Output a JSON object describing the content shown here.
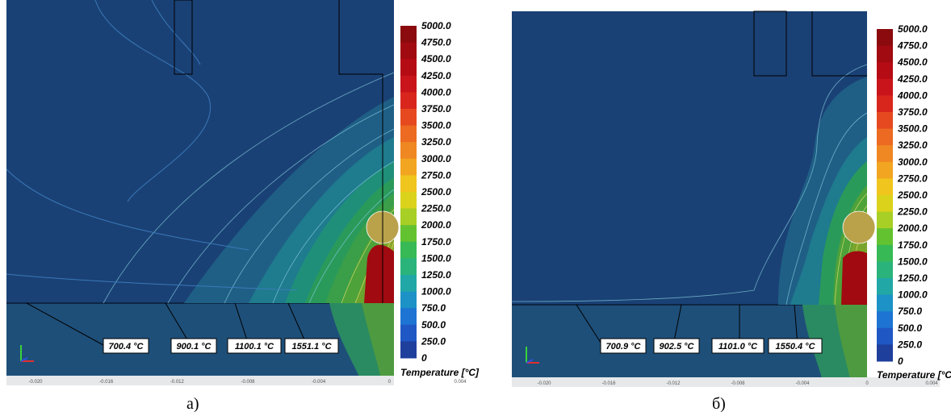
{
  "colors": {
    "background_field": "#1a4175",
    "substrate": "#1e4f79",
    "scale": [
      "#1f3f9c",
      "#1f58c4",
      "#1d74d2",
      "#1d92c6",
      "#21a8a6",
      "#2bb37c",
      "#37b955",
      "#63c230",
      "#a8cf25",
      "#dbd21c",
      "#f0c51d",
      "#f2a520",
      "#ef8722",
      "#ec6a21",
      "#e64920",
      "#d9261d",
      "#c8141a",
      "#b50b14",
      "#a00a10",
      "#8a0a0d"
    ]
  },
  "panels": [
    {
      "caption": "а)",
      "legend": {
        "title": "Temperature [°C]",
        "labels": [
          "5000.0",
          "4750.0",
          "4500.0",
          "4250.0",
          "4000.0",
          "3750.0",
          "3500.0",
          "3250.0",
          "3000.0",
          "2750.0",
          "2500.0",
          "2250.0",
          "2000.0",
          "1750.0",
          "1500.0",
          "1250.0",
          "1000.0",
          "750.0",
          "500.0",
          "250.0",
          "0"
        ]
      },
      "probes": [
        "700.4 °C",
        "900.1 °C",
        "1100.1 °C",
        "1551.1 °C"
      ],
      "x_ticks": [
        "-0.020",
        "-0.016",
        "-0.012",
        "-0.008",
        "-0.004",
        "0",
        "0.004"
      ]
    },
    {
      "caption": "б)",
      "legend": {
        "title": "Temperature [°C",
        "labels": [
          "5000.0",
          "4750.0",
          "4500.0",
          "4250.0",
          "4000.0",
          "3750.0",
          "3500.0",
          "3250.0",
          "3000.0",
          "2750.0",
          "2500.0",
          "2250.0",
          "2000.0",
          "1750.0",
          "1500.0",
          "1250.0",
          "1000.0",
          "750.0",
          "500.0",
          "250.0",
          "0"
        ]
      },
      "probes": [
        "700.9 °C",
        "902.5 °C",
        "1101.0 °C",
        "1550.4 °C"
      ],
      "x_ticks": [
        "-0.020",
        "-0.016",
        "-0.012",
        "-0.008",
        "-0.004",
        "0",
        "0.004"
      ]
    }
  ],
  "chart_data": [
    {
      "type": "heatmap",
      "title": "",
      "colorbar": {
        "label": "Temperature [°C]",
        "min": 0,
        "max": 5000,
        "step": 250
      },
      "x_ticks": [
        -0.02,
        -0.016,
        -0.012,
        -0.008,
        -0.004,
        0,
        0.004
      ],
      "probe_values_C": [
        700.4,
        900.1,
        1100.1,
        1551.1
      ]
    },
    {
      "type": "heatmap",
      "title": "",
      "colorbar": {
        "label": "Temperature [°C",
        "min": 0,
        "max": 5000,
        "step": 250
      },
      "x_ticks": [
        -0.02,
        -0.016,
        -0.012,
        -0.008,
        -0.004,
        0,
        0.004
      ],
      "probe_values_C": [
        700.9,
        902.5,
        1101.0,
        1550.4
      ]
    }
  ]
}
